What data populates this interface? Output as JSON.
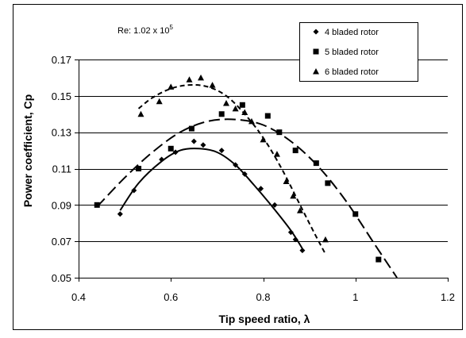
{
  "chart_data": {
    "type": "scatter",
    "xlabel": "Tip speed ratio, λ",
    "ylabel": "Power coefficient, Cp",
    "xlim": [
      0.4,
      1.2
    ],
    "ylim": [
      0.05,
      0.17
    ],
    "x_ticks": [
      "0.4",
      "0.6",
      "0.8",
      "1",
      "1.2"
    ],
    "y_ticks": [
      "0.05",
      "0.07",
      "0.09",
      "0.11",
      "0.13",
      "0.15",
      "0.17"
    ],
    "grid": "horizontal",
    "legend_position": "top-right",
    "annotation": {
      "text": "Re: 1.02 x 10",
      "superscript": "5"
    },
    "series": [
      {
        "name": "4 bladed rotor",
        "marker": "diamond",
        "trendline": "solid",
        "points": [
          [
            0.49,
            0.085
          ],
          [
            0.52,
            0.098
          ],
          [
            0.58,
            0.115
          ],
          [
            0.61,
            0.119
          ],
          [
            0.65,
            0.125
          ],
          [
            0.67,
            0.123
          ],
          [
            0.71,
            0.12
          ],
          [
            0.74,
            0.112
          ],
          [
            0.76,
            0.107
          ],
          [
            0.795,
            0.099
          ],
          [
            0.825,
            0.09
          ],
          [
            0.86,
            0.075
          ],
          [
            0.87,
            0.071
          ],
          [
            0.885,
            0.065
          ]
        ],
        "curve": [
          [
            0.49,
            0.087
          ],
          [
            0.53,
            0.102
          ],
          [
            0.58,
            0.114
          ],
          [
            0.62,
            0.12
          ],
          [
            0.66,
            0.121
          ],
          [
            0.7,
            0.119
          ],
          [
            0.74,
            0.112
          ],
          [
            0.78,
            0.101
          ],
          [
            0.82,
            0.089
          ],
          [
            0.86,
            0.076
          ],
          [
            0.885,
            0.066
          ]
        ]
      },
      {
        "name": "5 bladed rotor",
        "marker": "square",
        "trendline": "long-dash",
        "points": [
          [
            0.44,
            0.09
          ],
          [
            0.53,
            0.11
          ],
          [
            0.6,
            0.121
          ],
          [
            0.645,
            0.132
          ],
          [
            0.71,
            0.14
          ],
          [
            0.755,
            0.145
          ],
          [
            0.81,
            0.139
          ],
          [
            0.835,
            0.13
          ],
          [
            0.87,
            0.12
          ],
          [
            0.915,
            0.113
          ],
          [
            0.94,
            0.102
          ],
          [
            1.0,
            0.085
          ],
          [
            1.05,
            0.06
          ]
        ],
        "curve": [
          [
            0.44,
            0.089
          ],
          [
            0.5,
            0.105
          ],
          [
            0.56,
            0.119
          ],
          [
            0.62,
            0.13
          ],
          [
            0.68,
            0.136
          ],
          [
            0.74,
            0.137
          ],
          [
            0.8,
            0.134
          ],
          [
            0.86,
            0.125
          ],
          [
            0.92,
            0.111
          ],
          [
            0.98,
            0.092
          ],
          [
            1.04,
            0.069
          ],
          [
            1.09,
            0.05
          ]
        ]
      },
      {
        "name": "6 bladed rotor",
        "marker": "triangle",
        "trendline": "short-dash",
        "points": [
          [
            0.535,
            0.14
          ],
          [
            0.575,
            0.147
          ],
          [
            0.6,
            0.155
          ],
          [
            0.64,
            0.159
          ],
          [
            0.665,
            0.16
          ],
          [
            0.69,
            0.156
          ],
          [
            0.72,
            0.146
          ],
          [
            0.74,
            0.143
          ],
          [
            0.76,
            0.141
          ],
          [
            0.775,
            0.136
          ],
          [
            0.8,
            0.126
          ],
          [
            0.83,
            0.118
          ],
          [
            0.85,
            0.103
          ],
          [
            0.865,
            0.095
          ],
          [
            0.88,
            0.087
          ],
          [
            0.935,
            0.071
          ]
        ],
        "curve": [
          [
            0.53,
            0.143
          ],
          [
            0.56,
            0.149
          ],
          [
            0.6,
            0.154
          ],
          [
            0.64,
            0.156
          ],
          [
            0.68,
            0.155
          ],
          [
            0.72,
            0.15
          ],
          [
            0.76,
            0.14
          ],
          [
            0.8,
            0.127
          ],
          [
            0.84,
            0.11
          ],
          [
            0.88,
            0.09
          ],
          [
            0.91,
            0.075
          ],
          [
            0.935,
            0.063
          ]
        ]
      }
    ]
  }
}
